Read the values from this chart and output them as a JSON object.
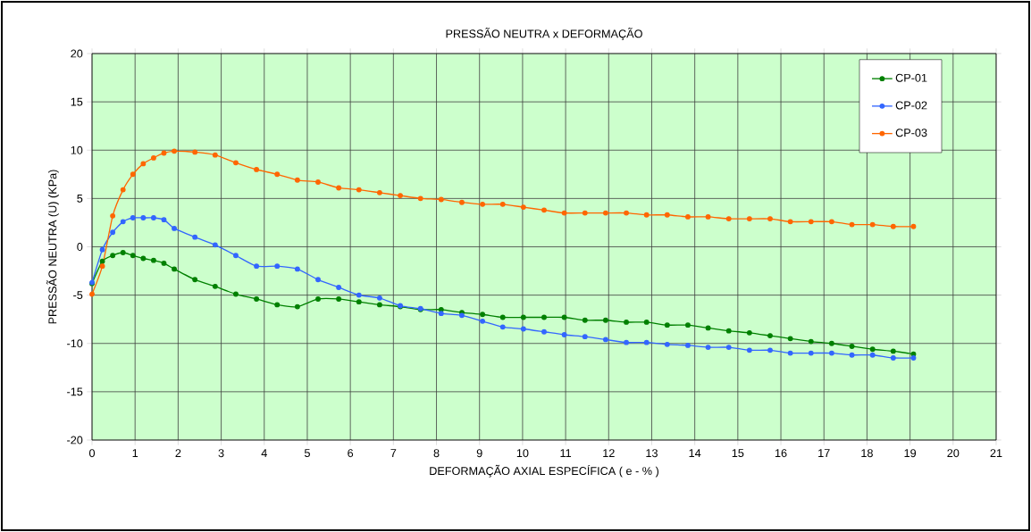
{
  "chart_data": {
    "type": "line",
    "title": "PRESSÃO NEUTRA x DEFORMAÇÃO",
    "xlabel": "DEFORMAÇÃO AXIAL ESPECÍFICA ( e - % )",
    "ylabel": "PRESSÃO NEUTRA  (U) (KPa)",
    "x": [
      0,
      0.24,
      0.48,
      0.72,
      0.95,
      1.19,
      1.43,
      1.67,
      1.91,
      2.39,
      2.86,
      3.34,
      3.82,
      4.3,
      4.77,
      5.25,
      5.73,
      6.2,
      6.68,
      7.16,
      7.63,
      8.11,
      8.59,
      9.07,
      9.54,
      10.02,
      10.5,
      10.97,
      11.45,
      11.93,
      12.41,
      12.88,
      13.36,
      13.84,
      14.31,
      14.79,
      15.27,
      15.75,
      16.22,
      16.7,
      17.18,
      17.65,
      18.13,
      18.61,
      19.08
    ],
    "series": [
      {
        "name": "CP-01",
        "color": "#008000",
        "values": [
          -3.8,
          -1.5,
          -0.9,
          -0.6,
          -0.9,
          -1.2,
          -1.4,
          -1.7,
          -2.3,
          -3.4,
          -4.1,
          -4.9,
          -5.4,
          -6.0,
          -6.2,
          -5.4,
          -5.4,
          -5.7,
          -6.0,
          -6.2,
          -6.5,
          -6.5,
          -6.8,
          -7.0,
          -7.3,
          -7.3,
          -7.3,
          -7.3,
          -7.6,
          -7.6,
          -7.8,
          -7.8,
          -8.1,
          -8.1,
          -8.4,
          -8.7,
          -8.9,
          -9.2,
          -9.5,
          -9.8,
          -10.0,
          -10.3,
          -10.6,
          -10.8,
          -11.1
        ]
      },
      {
        "name": "CP-02",
        "color": "#3366ff",
        "values": [
          -3.7,
          -0.3,
          1.5,
          2.6,
          3.0,
          3.0,
          3.0,
          2.8,
          1.9,
          1.0,
          0.2,
          -0.9,
          -2.0,
          -2.0,
          -2.3,
          -3.4,
          -4.2,
          -5.0,
          -5.3,
          -6.1,
          -6.4,
          -6.9,
          -7.1,
          -7.7,
          -8.3,
          -8.5,
          -8.8,
          -9.1,
          -9.3,
          -9.6,
          -9.9,
          -9.9,
          -10.1,
          -10.2,
          -10.4,
          -10.4,
          -10.7,
          -10.7,
          -11.0,
          -11.0,
          -11.0,
          -11.2,
          -11.2,
          -11.5,
          -11.5
        ]
      },
      {
        "name": "CP-03",
        "color": "#ff6600",
        "values": [
          -4.9,
          -2.0,
          3.2,
          5.9,
          7.5,
          8.6,
          9.2,
          9.7,
          9.9,
          9.8,
          9.5,
          8.7,
          8.0,
          7.5,
          6.9,
          6.7,
          6.1,
          5.9,
          5.6,
          5.3,
          5.0,
          4.9,
          4.6,
          4.4,
          4.4,
          4.1,
          3.8,
          3.5,
          3.5,
          3.5,
          3.5,
          3.3,
          3.3,
          3.1,
          3.1,
          2.9,
          2.9,
          2.9,
          2.6,
          2.6,
          2.6,
          2.3,
          2.3,
          2.1,
          2.1
        ]
      }
    ],
    "xlim": [
      0,
      21
    ],
    "xticks": [
      0,
      1,
      2,
      3,
      4,
      5,
      6,
      7,
      8,
      9,
      10,
      11,
      12,
      13,
      14,
      15,
      16,
      17,
      18,
      19,
      20,
      21
    ],
    "ylim": [
      -20,
      20
    ],
    "yticks": [
      -20,
      -15,
      -10,
      -5,
      0,
      5,
      10,
      15,
      20
    ],
    "grid": true,
    "legend": "top right",
    "marker": "circle",
    "line_style": "solid"
  }
}
